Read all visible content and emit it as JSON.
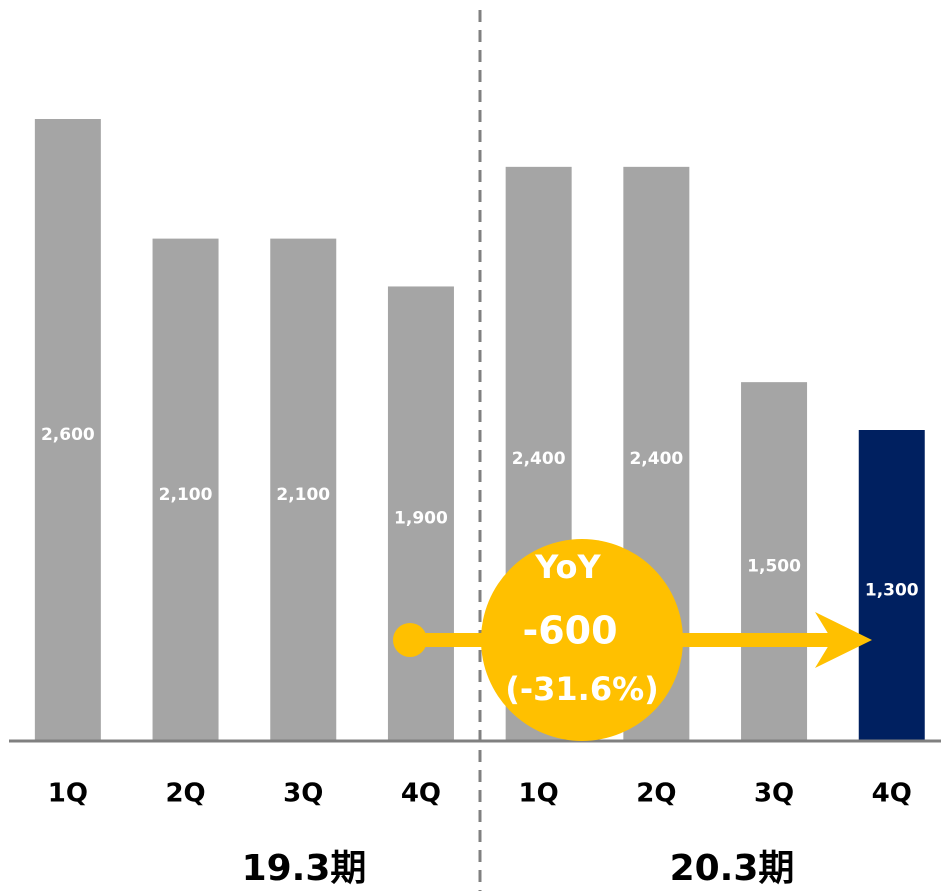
{
  "chart_data": {
    "type": "bar",
    "categories": [
      "1Q",
      "2Q",
      "3Q",
      "4Q",
      "1Q",
      "2Q",
      "3Q",
      "4Q"
    ],
    "values": [
      2600,
      2100,
      2100,
      1900,
      2400,
      2400,
      1500,
      1300
    ],
    "value_labels": [
      "2,600",
      "2,100",
      "2,100",
      "1,900",
      "2,400",
      "2,400",
      "1,500",
      "1,300"
    ],
    "colors": [
      "#a5a5a5",
      "#a5a5a5",
      "#a5a5a5",
      "#a5a5a5",
      "#a5a5a5",
      "#a5a5a5",
      "#a5a5a5",
      "#002060"
    ],
    "groups": [
      "19.3期",
      "20.3期"
    ],
    "ylim": [
      0,
      2600
    ],
    "annotation": {
      "title": "YoY",
      "change": "-600",
      "percent": "(-31.6%)",
      "color": "#ffc000"
    }
  }
}
